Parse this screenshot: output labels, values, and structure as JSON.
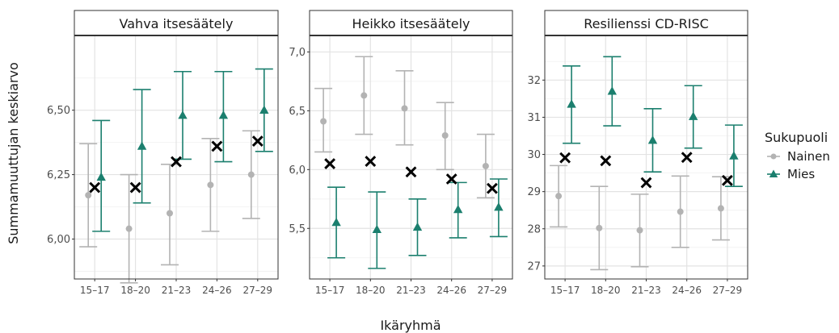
{
  "chart_data": {
    "type": "scatter",
    "xlabel": "Ikäryhmä",
    "ylabel": "Summamuuttujan keskiarvo",
    "categories": [
      "15–17",
      "18–20",
      "21–23",
      "24–26",
      "27–29"
    ],
    "legend": {
      "title": "Sukupuoli",
      "placement": "right",
      "entries": [
        {
          "name": "Nainen",
          "color": "#b3b3b3",
          "shape": "circle"
        },
        {
          "name": "Mies",
          "color": "#1b7f6e",
          "shape": "triangle"
        }
      ]
    },
    "mean_marker": {
      "shape": "cross",
      "color": "#000000"
    },
    "panels": [
      {
        "title": "Vahva itsesäätely",
        "ylim": [
          5.845,
          6.79
        ],
        "yticks": [
          {
            "value": 6.0,
            "label": "6,00"
          },
          {
            "value": 6.25,
            "label": "6,25"
          },
          {
            "value": 6.5,
            "label": "6,50"
          }
        ],
        "series": [
          {
            "name": "Nainen",
            "values": [
              6.17,
              6.04,
              6.1,
              6.21,
              6.25
            ],
            "lower": [
              5.97,
              5.83,
              5.9,
              6.03,
              6.08
            ],
            "upper": [
              6.37,
              6.25,
              6.29,
              6.39,
              6.42
            ]
          },
          {
            "name": "Mies",
            "values": [
              6.24,
              6.36,
              6.48,
              6.48,
              6.5
            ],
            "lower": [
              6.03,
              6.14,
              6.31,
              6.3,
              6.34
            ],
            "upper": [
              6.46,
              6.58,
              6.65,
              6.65,
              6.66
            ]
          }
        ],
        "overall": [
          6.2,
          6.2,
          6.3,
          6.36,
          6.38
        ]
      },
      {
        "title": "Heikko itsesäätely",
        "ylim": [
          5.07,
          7.14
        ],
        "yticks": [
          {
            "value": 5.5,
            "label": "5,5"
          },
          {
            "value": 6.0,
            "label": "6,0"
          },
          {
            "value": 6.5,
            "label": "6,5"
          },
          {
            "value": 7.0,
            "label": "7,0"
          }
        ],
        "series": [
          {
            "name": "Nainen",
            "values": [
              6.41,
              6.63,
              6.52,
              6.29,
              6.03
            ],
            "lower": [
              6.15,
              6.3,
              6.21,
              6.0,
              5.76
            ],
            "upper": [
              6.69,
              6.96,
              6.84,
              6.57,
              6.3
            ]
          },
          {
            "name": "Mies",
            "values": [
              5.55,
              5.49,
              5.51,
              5.66,
              5.68
            ],
            "lower": [
              5.25,
              5.16,
              5.27,
              5.42,
              5.43
            ],
            "upper": [
              5.85,
              5.81,
              5.75,
              5.89,
              5.92
            ]
          }
        ],
        "overall": [
          6.05,
          6.07,
          5.98,
          5.92,
          5.84
        ]
      },
      {
        "title": "Resilienssi CD-RISC",
        "ylim": [
          26.65,
          33.2
        ],
        "yticks": [
          {
            "value": 27,
            "label": "27"
          },
          {
            "value": 28,
            "label": "28"
          },
          {
            "value": 29,
            "label": "29"
          },
          {
            "value": 30,
            "label": "30"
          },
          {
            "value": 31,
            "label": "31"
          },
          {
            "value": 32,
            "label": "32"
          }
        ],
        "series": [
          {
            "name": "Nainen",
            "values": [
              28.88,
              28.02,
              27.96,
              28.46,
              28.55
            ],
            "lower": [
              28.05,
              26.9,
              26.98,
              27.5,
              27.7
            ],
            "upper": [
              29.7,
              29.14,
              28.93,
              29.42,
              29.4
            ]
          },
          {
            "name": "Mies",
            "values": [
              31.35,
              31.7,
              30.38,
              31.02,
              29.96
            ],
            "lower": [
              30.3,
              30.77,
              29.53,
              30.17,
              29.14
            ],
            "upper": [
              32.38,
              32.63,
              31.23,
              31.85,
              30.79
            ]
          }
        ],
        "overall": [
          29.91,
          29.83,
          29.24,
          29.92,
          29.3
        ]
      }
    ]
  }
}
